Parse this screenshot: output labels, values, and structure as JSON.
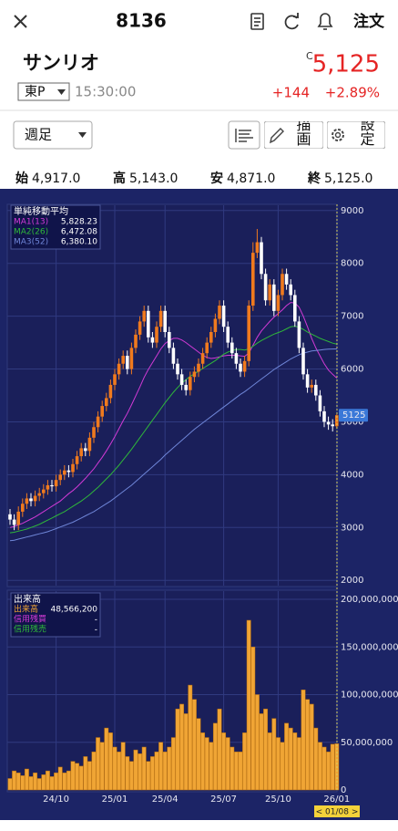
{
  "header": {
    "code": "8136",
    "order": "注文"
  },
  "quote": {
    "name": "サンリオ",
    "market": "東P",
    "time": "15:30:00",
    "flag": "C",
    "price": "5,125",
    "change": "+144",
    "change_pct": "+2.89%"
  },
  "toolbar": {
    "period": "週足",
    "draw": "描画",
    "settings": "設定"
  },
  "ohlc": [
    {
      "label": "始",
      "value": "4,917.0"
    },
    {
      "label": "高",
      "value": "5,143.0"
    },
    {
      "label": "安",
      "value": "4,871.0"
    },
    {
      "label": "終",
      "value": "5,125.0"
    }
  ],
  "chart_data": [
    {
      "type": "candlestick",
      "title": "単純移動平均",
      "categories": [
        null,
        null,
        null,
        null,
        null,
        null,
        null,
        null,
        null,
        null,
        null,
        "24/10",
        null,
        null,
        null,
        null,
        null,
        null,
        null,
        null,
        null,
        null,
        null,
        null,
        null,
        "25/01",
        null,
        null,
        null,
        null,
        null,
        null,
        null,
        null,
        null,
        null,
        null,
        "25/04",
        null,
        null,
        null,
        null,
        null,
        null,
        null,
        null,
        null,
        null,
        null,
        null,
        null,
        "25/07",
        null,
        null,
        null,
        null,
        null,
        null,
        null,
        null,
        null,
        null,
        null,
        null,
        "25/10",
        null,
        null,
        null,
        null,
        null,
        null,
        null,
        null,
        null,
        null,
        null,
        null,
        null,
        "26/01"
      ],
      "open": [
        3250,
        3150,
        3050,
        3300,
        3450,
        3550,
        3500,
        3600,
        3650,
        3720,
        3800,
        3780,
        3900,
        4000,
        4080,
        4050,
        4200,
        4350,
        4500,
        4450,
        4700,
        4900,
        5100,
        5300,
        5450,
        5700,
        5900,
        6100,
        6250,
        6000,
        6400,
        6650,
        6900,
        7100,
        6600,
        6500,
        6800,
        7100,
        6700,
        6400,
        6100,
        5900,
        5700,
        5600,
        5850,
        5950,
        6100,
        6300,
        6500,
        6700,
        6950,
        7200,
        6800,
        6500,
        6300,
        6100,
        5950,
        6150,
        7200,
        8200,
        8400,
        7800,
        7300,
        7600,
        7100,
        7400,
        7800,
        7600,
        7400,
        6900,
        6400,
        5900,
        5650,
        5700,
        5500,
        5200,
        5000,
        4950,
        4917
      ],
      "high": [
        3350,
        3250,
        3400,
        3550,
        3650,
        3650,
        3700,
        3750,
        3820,
        3900,
        3900,
        4000,
        4100,
        4180,
        4180,
        4300,
        4450,
        4600,
        4600,
        4800,
        5000,
        5200,
        5400,
        5550,
        5800,
        6000,
        6200,
        6350,
        6350,
        6500,
        6750,
        7000,
        7200,
        7200,
        6700,
        6900,
        7200,
        7200,
        6800,
        6500,
        6200,
        6000,
        5800,
        5950,
        6050,
        6200,
        6400,
        6600,
        6800,
        7050,
        7300,
        7300,
        6900,
        6600,
        6400,
        6200,
        6250,
        7300,
        8400,
        8650,
        8500,
        7900,
        7700,
        7700,
        7500,
        7900,
        7900,
        7700,
        7500,
        7000,
        6500,
        6000,
        5800,
        5800,
        5600,
        5300,
        5100,
        5050,
        5143
      ],
      "low": [
        3050,
        2950,
        2950,
        3200,
        3350,
        3400,
        3400,
        3500,
        3550,
        3620,
        3680,
        3680,
        3800,
        3900,
        3950,
        3950,
        4100,
        4250,
        4350,
        4350,
        4600,
        4800,
        5000,
        5200,
        5350,
        5600,
        5800,
        6000,
        5900,
        5900,
        6300,
        6550,
        6800,
        6500,
        6400,
        6400,
        6700,
        6600,
        6300,
        6000,
        5800,
        5600,
        5500,
        5500,
        5750,
        5850,
        6000,
        6200,
        6400,
        6600,
        6850,
        6700,
        6400,
        6200,
        6000,
        5850,
        5850,
        6050,
        7100,
        8100,
        7700,
        7200,
        7200,
        7000,
        7000,
        7300,
        7500,
        7300,
        6800,
        6300,
        5800,
        5550,
        5550,
        5400,
        5100,
        4900,
        4850,
        4817,
        4871
      ],
      "close": [
        3150,
        3050,
        3300,
        3450,
        3550,
        3500,
        3600,
        3650,
        3720,
        3800,
        3780,
        3900,
        4000,
        4080,
        4050,
        4200,
        4350,
        4500,
        4450,
        4700,
        4900,
        5100,
        5300,
        5450,
        5700,
        5900,
        6100,
        6250,
        6000,
        6400,
        6650,
        6900,
        7100,
        6600,
        6500,
        6800,
        7100,
        6700,
        6400,
        6100,
        5900,
        5700,
        5600,
        5850,
        5950,
        6100,
        6300,
        6500,
        6700,
        6950,
        7200,
        6800,
        6500,
        6300,
        6100,
        5950,
        6150,
        7200,
        8200,
        8400,
        7800,
        7300,
        7600,
        7100,
        7400,
        7800,
        7600,
        7400,
        6900,
        6400,
        5900,
        5650,
        5700,
        5500,
        5200,
        5000,
        4950,
        4917,
        5125
      ],
      "up_color": "#f07a1e",
      "down_color": "#ffffff",
      "series": [
        {
          "name": "MA1(13)",
          "color": "#d23ad6",
          "last_label": "5,828.23",
          "values": [
            3000,
            3020,
            3050,
            3080,
            3120,
            3160,
            3200,
            3250,
            3300,
            3350,
            3400,
            3450,
            3500,
            3570,
            3640,
            3700,
            3770,
            3850,
            3930,
            4020,
            4110,
            4220,
            4330,
            4450,
            4580,
            4720,
            4870,
            5020,
            5160,
            5320,
            5490,
            5660,
            5840,
            5990,
            6120,
            6250,
            6380,
            6480,
            6540,
            6580,
            6580,
            6550,
            6500,
            6440,
            6380,
            6320,
            6260,
            6220,
            6200,
            6210,
            6230,
            6250,
            6260,
            6260,
            6260,
            6250,
            6240,
            6300,
            6450,
            6600,
            6720,
            6810,
            6900,
            6980,
            7050,
            7120,
            7200,
            7260,
            7250,
            7170,
            7000,
            6800,
            6580,
            6400,
            6250,
            6100,
            5980,
            5900,
            5828
          ]
        },
        {
          "name": "MA2(26)",
          "color": "#2fb83a",
          "last_label": "6,472.08",
          "values": [
            2900,
            2910,
            2930,
            2950,
            2970,
            3000,
            3030,
            3060,
            3100,
            3140,
            3180,
            3220,
            3260,
            3300,
            3350,
            3400,
            3450,
            3500,
            3560,
            3620,
            3690,
            3760,
            3840,
            3920,
            4000,
            4090,
            4180,
            4280,
            4380,
            4480,
            4590,
            4700,
            4810,
            4920,
            5030,
            5140,
            5250,
            5360,
            5460,
            5560,
            5650,
            5730,
            5800,
            5860,
            5910,
            5960,
            6010,
            6060,
            6110,
            6160,
            6220,
            6280,
            6320,
            6350,
            6370,
            6370,
            6360,
            6380,
            6430,
            6490,
            6540,
            6580,
            6620,
            6660,
            6690,
            6720,
            6760,
            6800,
            6810,
            6790,
            6750,
            6700,
            6660,
            6620,
            6580,
            6550,
            6520,
            6490,
            6472
          ]
        },
        {
          "name": "MA3(52)",
          "color": "#6f86d8",
          "last_label": "6,380.10",
          "values": [
            2750,
            2760,
            2780,
            2800,
            2820,
            2840,
            2860,
            2880,
            2900,
            2920,
            2950,
            2980,
            3010,
            3040,
            3070,
            3100,
            3140,
            3180,
            3220,
            3260,
            3300,
            3350,
            3400,
            3450,
            3500,
            3560,
            3620,
            3680,
            3740,
            3800,
            3870,
            3940,
            4010,
            4080,
            4150,
            4220,
            4290,
            4370,
            4440,
            4510,
            4580,
            4650,
            4720,
            4790,
            4860,
            4920,
            4980,
            5040,
            5100,
            5160,
            5220,
            5280,
            5340,
            5400,
            5460,
            5520,
            5570,
            5630,
            5690,
            5750,
            5810,
            5870,
            5930,
            5990,
            6040,
            6090,
            6140,
            6190,
            6230,
            6270,
            6300,
            6320,
            6340,
            6350,
            6360,
            6370,
            6375,
            6378,
            6380
          ]
        }
      ],
      "ylim": [
        1900,
        9100
      ],
      "yticks": [
        2000,
        3000,
        4000,
        5000,
        6000,
        7000,
        8000,
        9000
      ],
      "price_tag": {
        "value": 5125,
        "label": "5125"
      },
      "grid": true
    },
    {
      "type": "bar",
      "title": "出来高",
      "color": "#f0a535",
      "values": [
        12000000,
        20000000,
        18000000,
        15000000,
        22000000,
        14000000,
        18000000,
        12000000,
        16000000,
        20000000,
        14000000,
        18000000,
        24000000,
        18000000,
        20000000,
        30000000,
        28000000,
        25000000,
        35000000,
        30000000,
        40000000,
        55000000,
        50000000,
        65000000,
        60000000,
        45000000,
        40000000,
        50000000,
        35000000,
        30000000,
        42000000,
        38000000,
        45000000,
        30000000,
        35000000,
        40000000,
        50000000,
        40000000,
        45000000,
        55000000,
        85000000,
        90000000,
        80000000,
        110000000,
        95000000,
        75000000,
        60000000,
        55000000,
        50000000,
        70000000,
        85000000,
        60000000,
        55000000,
        45000000,
        40000000,
        40000000,
        60000000,
        178000000,
        150000000,
        100000000,
        80000000,
        85000000,
        60000000,
        75000000,
        55000000,
        50000000,
        70000000,
        65000000,
        60000000,
        55000000,
        105000000,
        95000000,
        90000000,
        65000000,
        50000000,
        45000000,
        40000000,
        48000000,
        48566200
      ],
      "ylim": [
        0,
        200000000
      ],
      "yticks": [
        0,
        {
          "value": 50000000,
          "label": "50,000,000"
        },
        {
          "value": 100000000,
          "label": "100,000,000"
        },
        {
          "value": 150000000,
          "label": "150,000,000"
        },
        {
          "value": 200000000,
          "label": "200,000,000"
        }
      ],
      "legend": [
        {
          "name": "出来高",
          "color": "#f0a535",
          "label": "48,566,200"
        },
        {
          "name": "信用残買",
          "color": "#d23ad6",
          "label": "-"
        },
        {
          "name": "信用残売",
          "color": "#2fb83a",
          "label": "-"
        }
      ],
      "cursor_label": "< 01/08 >",
      "grid": true
    }
  ]
}
